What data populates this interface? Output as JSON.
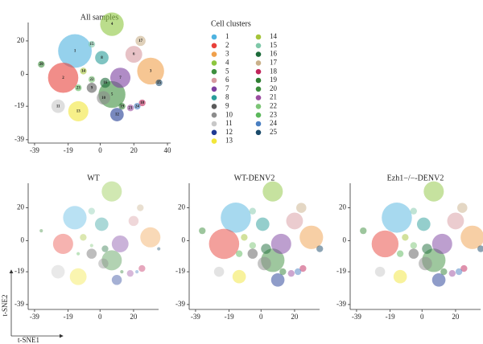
{
  "axis_labels": {
    "x": "t-SNE1",
    "y": "t-SNE2"
  },
  "chart_data": [
    {
      "type": "scatter",
      "title": "All samples",
      "legend_title": "Cell clusters",
      "xlim": [
        -42.8,
        41.9
      ],
      "ylim": [
        -41,
        31
      ],
      "xticks": [
        -39,
        -19,
        0,
        20,
        40
      ],
      "yticks": [
        20,
        0,
        -19,
        -39
      ],
      "series": [
        {
          "name": "1",
          "color": "#4fb3e0"
        },
        {
          "name": "2",
          "color": "#e8413a"
        },
        {
          "name": "3",
          "color": "#f0a04b"
        },
        {
          "name": "4",
          "color": "#8dc63f"
        },
        {
          "name": "5",
          "color": "#3e8f3e"
        },
        {
          "name": "6",
          "color": "#d79aa0"
        },
        {
          "name": "7",
          "color": "#7b3fa0"
        },
        {
          "name": "8",
          "color": "#2a9d9a"
        },
        {
          "name": "9",
          "color": "#5a5a5a"
        },
        {
          "name": "10",
          "color": "#8c8c8c"
        },
        {
          "name": "11",
          "color": "#c8c8c8"
        },
        {
          "name": "12",
          "color": "#1f3a93"
        },
        {
          "name": "13",
          "color": "#f2e63a"
        },
        {
          "name": "14",
          "color": "#a5c43a"
        },
        {
          "name": "15",
          "color": "#7fc8a9"
        },
        {
          "name": "16",
          "color": "#1c6b3a"
        },
        {
          "name": "17",
          "color": "#c9b08a"
        },
        {
          "name": "18",
          "color": "#c0245a"
        },
        {
          "name": "19",
          "color": "#2e7d32"
        },
        {
          "name": "20",
          "color": "#3c8d3c"
        },
        {
          "name": "21",
          "color": "#9b4da0"
        },
        {
          "name": "22",
          "color": "#7cc576"
        },
        {
          "name": "23",
          "color": "#5cb85c"
        },
        {
          "name": "24",
          "color": "#4a7fc1"
        },
        {
          "name": "25",
          "color": "#1a4a6a"
        }
      ],
      "x": [
        -15,
        -22,
        30,
        7,
        7,
        20,
        12,
        1,
        -5,
        2,
        -25,
        10,
        -13,
        -10,
        -5,
        3,
        24,
        25,
        13,
        -35,
        18,
        -5,
        -13,
        22,
        35
      ],
      "y": [
        14,
        -2,
        2,
        30,
        -12,
        12,
        -2,
        10,
        -8,
        -14,
        -19,
        -24,
        -22,
        2,
        18,
        -5,
        20,
        -17,
        -19,
        6,
        -20,
        -3,
        -8,
        -19,
        -5
      ],
      "sizes": [
        10,
        9,
        8,
        7,
        8,
        5,
        6,
        4,
        3,
        4,
        4,
        4,
        6,
        2,
        2,
        3,
        3,
        2,
        2,
        2,
        2,
        2,
        2,
        2,
        2
      ]
    },
    {
      "type": "scatter",
      "title": "WT",
      "xlim": [
        -42.8,
        34.9
      ],
      "ylim": [
        -42,
        35
      ],
      "xticks": [
        -39,
        -19,
        0,
        20
      ],
      "yticks": [
        20,
        0,
        -19,
        -39
      ],
      "x": [
        -15,
        -22,
        30,
        7,
        7,
        20,
        12,
        1,
        -5,
        2,
        -25,
        10,
        -13,
        -10,
        -5,
        3,
        24,
        25,
        13,
        -35,
        18,
        -5,
        -13,
        22,
        35
      ],
      "y": [
        14,
        -2,
        2,
        30,
        -12,
        12,
        -2,
        10,
        -8,
        -14,
        -19,
        -24,
        -22,
        2,
        18,
        -5,
        20,
        -17,
        -19,
        6,
        -20,
        -3,
        -8,
        -19,
        -5
      ],
      "sizes": [
        7,
        6,
        6,
        6,
        6,
        3,
        5,
        4,
        3,
        3,
        4,
        3,
        5,
        2,
        2,
        2,
        2,
        2,
        1,
        1,
        2,
        1,
        1,
        1,
        1
      ]
    },
    {
      "type": "scatter",
      "title": "WT-DENV2",
      "xlim": [
        -42.8,
        34.9
      ],
      "ylim": [
        -42,
        35
      ],
      "xticks": [
        -39,
        -19,
        0,
        20
      ],
      "yticks": [
        20,
        0,
        -19,
        -39
      ],
      "x": [
        -15,
        -22,
        30,
        7,
        7,
        20,
        12,
        1,
        -5,
        2,
        -25,
        10,
        -13,
        -10,
        -5,
        3,
        24,
        25,
        13,
        -35,
        18,
        -5,
        -13,
        22,
        35
      ],
      "y": [
        14,
        -2,
        2,
        30,
        -12,
        12,
        -2,
        10,
        -8,
        -14,
        -19,
        -24,
        -22,
        2,
        18,
        -5,
        20,
        -17,
        -19,
        6,
        -20,
        -3,
        -8,
        -19,
        -5
      ],
      "sizes": [
        9,
        9,
        7,
        6,
        7,
        5,
        6,
        4,
        3,
        4,
        3,
        4,
        4,
        2,
        2,
        3,
        3,
        2,
        2,
        2,
        2,
        2,
        2,
        2,
        2
      ]
    },
    {
      "type": "scatter",
      "title": "Ezh1−/−-DENV2",
      "xlim": [
        -42.8,
        34.9
      ],
      "ylim": [
        -42,
        35
      ],
      "xticks": [
        -39,
        -19,
        0,
        20
      ],
      "yticks": [
        20,
        0,
        -19,
        -39
      ],
      "x": [
        -15,
        -22,
        30,
        7,
        7,
        20,
        12,
        1,
        -5,
        2,
        -25,
        10,
        -13,
        -10,
        -5,
        3,
        24,
        25,
        13,
        -35,
        18,
        -5,
        -13,
        22,
        35
      ],
      "y": [
        14,
        -2,
        2,
        30,
        -12,
        12,
        -2,
        10,
        -8,
        -14,
        -19,
        -24,
        -22,
        2,
        18,
        -5,
        20,
        -17,
        -19,
        6,
        -20,
        -3,
        -8,
        -19,
        -5
      ],
      "sizes": [
        9,
        8,
        7,
        6,
        7,
        5,
        6,
        4,
        3,
        4,
        3,
        4,
        4,
        2,
        2,
        3,
        3,
        2,
        2,
        2,
        2,
        2,
        2,
        2,
        2
      ]
    }
  ]
}
